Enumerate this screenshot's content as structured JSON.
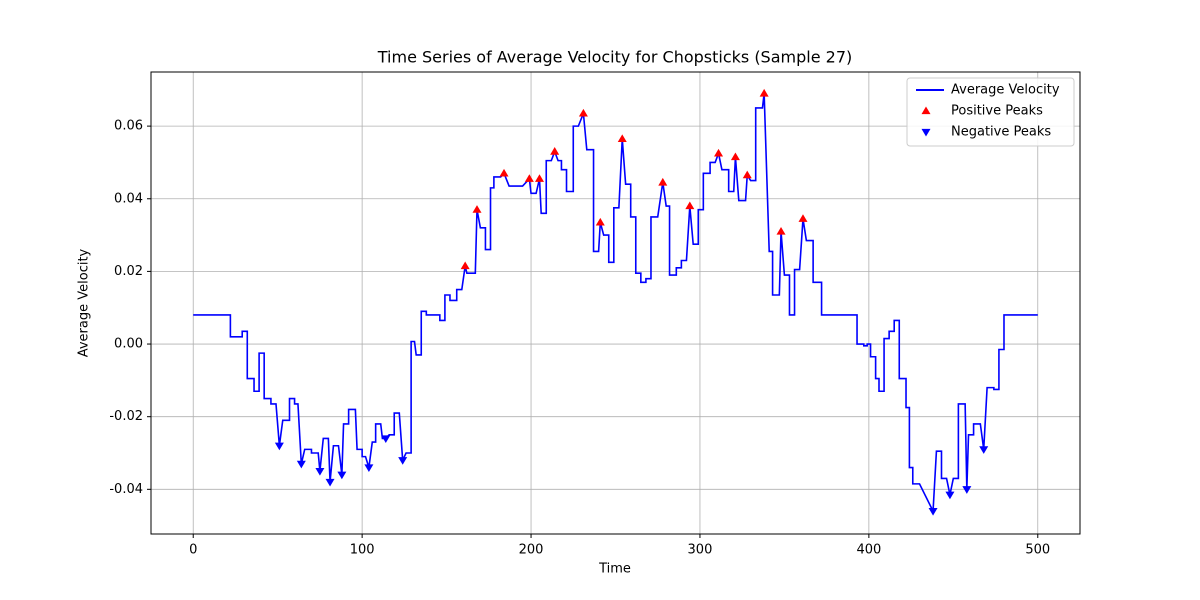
{
  "chart_data": {
    "type": "line",
    "title": "Time Series of Average Velocity for Chopsticks (Sample 27)",
    "x_label": "Time",
    "y_label": "Average Velocity",
    "xlim": [
      -25,
      525
    ],
    "ylim": [
      -0.0523,
      0.0749
    ],
    "xticks": [
      0,
      100,
      200,
      300,
      400,
      500
    ],
    "yticks": [
      {
        "value": -0.04,
        "label": "-0.04"
      },
      -0.02,
      {
        "value": 0,
        "label": "0.00"
      },
      0.02,
      0.04,
      0.06
    ],
    "grid": true,
    "legend": "upper right",
    "series": [
      {
        "name": "Average Velocity",
        "color": "#0000ff",
        "marker": "none",
        "x": [
          0,
          22,
          22,
          29,
          29,
          32,
          32,
          36,
          36,
          39,
          39,
          42,
          42,
          46,
          46,
          49,
          51,
          53,
          57,
          57,
          60,
          60,
          62,
          64,
          66,
          70,
          70,
          74,
          75,
          77,
          80,
          81,
          83,
          86,
          88,
          89,
          92,
          92,
          96,
          97,
          100,
          100,
          102,
          104,
          106,
          108,
          108,
          111,
          112,
          114,
          116,
          119,
          119,
          122,
          124,
          126,
          129,
          129,
          131,
          132,
          135,
          135,
          138,
          138,
          146,
          146,
          149,
          149,
          152,
          152,
          156,
          156,
          159,
          161,
          162,
          167,
          168,
          170,
          173,
          173,
          176,
          176,
          178,
          178,
          182,
          184,
          187,
          195,
          199,
          200,
          203,
          205,
          206,
          209,
          209,
          212,
          214,
          216,
          218,
          218,
          221,
          221,
          225,
          225,
          228,
          231,
          233,
          237,
          237,
          240,
          241,
          243,
          246,
          246,
          249,
          249,
          252,
          254,
          256,
          259,
          259,
          262,
          262,
          265,
          265,
          268,
          268,
          271,
          271,
          275,
          278,
          280,
          282,
          282,
          286,
          286,
          289,
          289,
          292,
          294,
          296,
          299,
          299,
          302,
          302,
          306,
          306,
          309,
          311,
          313,
          317,
          317,
          320,
          321,
          323,
          327,
          328,
          330,
          333,
          333,
          337,
          338,
          341,
          343,
          343,
          347,
          348,
          350,
          353,
          353,
          356,
          356,
          359,
          361,
          363,
          367,
          367,
          372,
          372,
          393,
          393,
          397,
          397,
          399,
          399,
          401,
          401,
          404,
          404,
          406,
          406,
          409,
          409,
          412,
          412,
          415,
          415,
          418,
          418,
          422,
          422,
          424,
          424,
          426,
          426,
          430,
          438,
          440,
          443,
          443,
          446,
          448,
          450,
          453,
          453,
          457,
          458,
          459,
          462,
          462,
          466,
          468,
          470,
          474,
          474,
          477,
          477,
          480,
          480,
          500
        ],
        "values": [
          0.008,
          0.008,
          0.002,
          0.002,
          0.0035,
          0.0035,
          -0.0095,
          -0.0095,
          -0.013,
          -0.013,
          -0.0025,
          -0.0025,
          -0.015,
          -0.015,
          -0.0165,
          -0.0165,
          -0.028,
          -0.021,
          -0.021,
          -0.015,
          -0.015,
          -0.0165,
          -0.0165,
          -0.033,
          -0.029,
          -0.029,
          -0.03,
          -0.03,
          -0.035,
          -0.026,
          -0.026,
          -0.038,
          -0.028,
          -0.028,
          -0.036,
          -0.022,
          -0.022,
          -0.018,
          -0.018,
          -0.029,
          -0.029,
          -0.031,
          -0.031,
          -0.034,
          -0.027,
          -0.027,
          -0.022,
          -0.022,
          -0.026,
          -0.026,
          -0.025,
          -0.025,
          -0.019,
          -0.019,
          -0.032,
          -0.03,
          -0.03,
          0.0007,
          0.0007,
          -0.003,
          -0.003,
          0.009,
          0.009,
          0.008,
          0.008,
          0.0065,
          0.0065,
          0.0135,
          0.0135,
          0.012,
          0.012,
          0.015,
          0.015,
          0.0215,
          0.0195,
          0.0195,
          0.037,
          0.032,
          0.032,
          0.026,
          0.026,
          0.043,
          0.043,
          0.046,
          0.046,
          0.047,
          0.0435,
          0.0435,
          0.0455,
          0.0415,
          0.0415,
          0.0455,
          0.036,
          0.036,
          0.0505,
          0.0505,
          0.053,
          0.0505,
          0.0505,
          0.048,
          0.048,
          0.042,
          0.042,
          0.06,
          0.06,
          0.0635,
          0.0535,
          0.0535,
          0.0255,
          0.0255,
          0.0335,
          0.03,
          0.03,
          0.0225,
          0.0225,
          0.0375,
          0.0375,
          0.0565,
          0.044,
          0.044,
          0.035,
          0.035,
          0.0195,
          0.0195,
          0.017,
          0.017,
          0.018,
          0.018,
          0.035,
          0.035,
          0.0445,
          0.038,
          0.038,
          0.019,
          0.019,
          0.021,
          0.021,
          0.023,
          0.023,
          0.038,
          0.0275,
          0.0275,
          0.037,
          0.037,
          0.047,
          0.047,
          0.05,
          0.05,
          0.0525,
          0.048,
          0.048,
          0.042,
          0.042,
          0.0515,
          0.0395,
          0.0395,
          0.0465,
          0.045,
          0.045,
          0.065,
          0.065,
          0.069,
          0.0255,
          0.0255,
          0.0135,
          0.0135,
          0.031,
          0.019,
          0.019,
          0.008,
          0.008,
          0.0205,
          0.0205,
          0.0345,
          0.0285,
          0.0285,
          0.017,
          0.017,
          0.008,
          0.008,
          0,
          0,
          -0.0005,
          -0.0005,
          0,
          0,
          -0.0035,
          -0.0035,
          -0.0095,
          -0.0095,
          -0.013,
          -0.013,
          0.0015,
          0.0015,
          0.0035,
          0.0035,
          0.0065,
          0.0065,
          -0.0095,
          -0.0095,
          -0.0175,
          -0.0175,
          -0.034,
          -0.034,
          -0.0385,
          -0.0385,
          -0.046,
          -0.0295,
          -0.0295,
          -0.037,
          -0.037,
          -0.0415,
          -0.037,
          -0.037,
          -0.0165,
          -0.0165,
          -0.04,
          -0.025,
          -0.025,
          -0.022,
          -0.022,
          -0.029,
          -0.012,
          -0.012,
          -0.0125,
          -0.0125,
          -0.0015,
          -0.0015,
          0.008,
          0.008
        ]
      },
      {
        "name": "Positive Peaks",
        "color": "#ff0000",
        "marker": "triangle-up",
        "x": [
          161,
          168,
          184,
          199,
          205,
          214,
          231,
          241,
          254,
          278,
          294,
          311,
          321,
          328,
          338,
          348,
          361
        ],
        "values": [
          0.0215,
          0.037,
          0.047,
          0.0455,
          0.0455,
          0.053,
          0.0635,
          0.0335,
          0.0565,
          0.0445,
          0.038,
          0.0525,
          0.0515,
          0.0465,
          0.069,
          0.031,
          0.0345
        ]
      },
      {
        "name": "Negative Peaks",
        "color": "#0000ff",
        "marker": "triangle-down",
        "x": [
          51,
          64,
          75,
          81,
          88,
          104,
          114,
          124,
          438,
          448,
          458,
          468
        ],
        "values": [
          -0.028,
          -0.033,
          -0.035,
          -0.038,
          -0.036,
          -0.034,
          -0.026,
          -0.032,
          -0.046,
          -0.0415,
          -0.04,
          -0.029
        ]
      }
    ]
  }
}
